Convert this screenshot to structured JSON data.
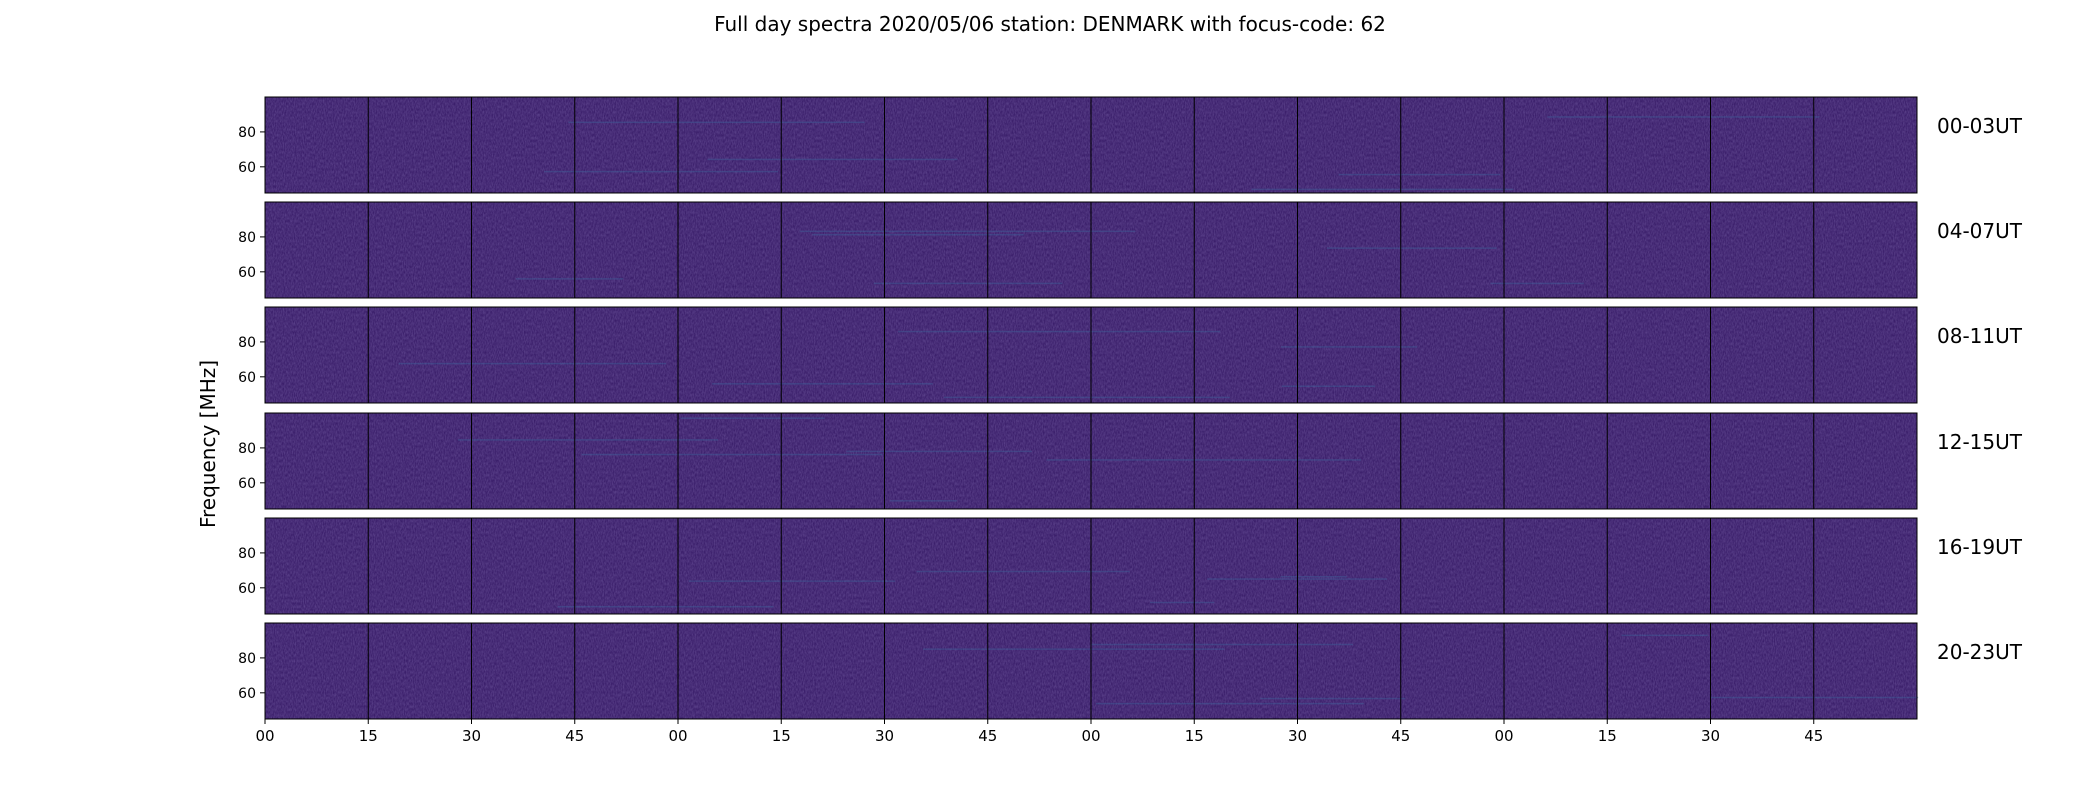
{
  "chart_data": {
    "type": "heatmap",
    "title": "Full day spectra 2020/05/06 station: DENMARK with focus-code: 62",
    "ylabel": "Frequency [MHz]",
    "xlabel": "",
    "ylim": [
      45,
      100
    ],
    "yticks": [
      60,
      80
    ],
    "xticks": [
      "00",
      "15",
      "30",
      "45",
      "00",
      "15",
      "30",
      "45",
      "00",
      "15",
      "30",
      "45",
      "00",
      "15",
      "30",
      "45"
    ],
    "rows": [
      {
        "label": "00-03UT",
        "segments": 16
      },
      {
        "label": "04-07UT",
        "segments": 16
      },
      {
        "label": "08-11UT",
        "segments": 16
      },
      {
        "label": "12-15UT",
        "segments": 16
      },
      {
        "label": "16-19UT",
        "segments": 16
      },
      {
        "label": "20-23UT",
        "segments": 16
      }
    ],
    "colormap": "viridis",
    "background_color": "#3b1f6b",
    "grid": false
  }
}
